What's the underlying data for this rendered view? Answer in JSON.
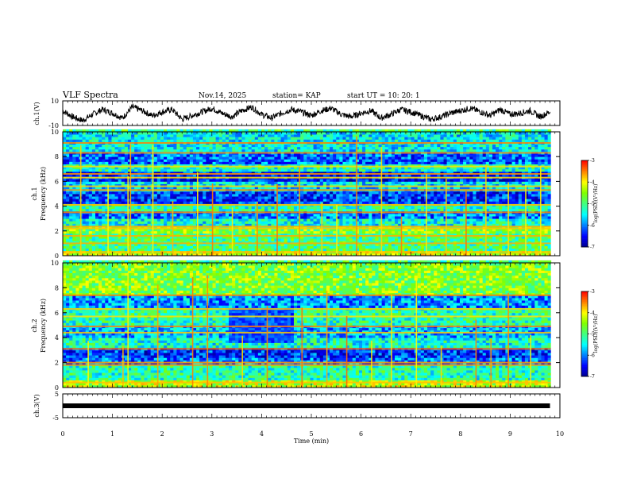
{
  "header": {
    "title": "VLF Spectra",
    "date": "Nov.14, 2025",
    "station": "station= KAP",
    "start_ut": "start  UT =   10: 20: 1"
  },
  "colors": {
    "waveform": "#000000",
    "ch3_bar": "#000000",
    "colormap": [
      "#00008f",
      "#0000ff",
      "#0080ff",
      "#00ffff",
      "#40ff80",
      "#80ff00",
      "#ffff00",
      "#ff8000",
      "#ff0000",
      "#ffffff"
    ]
  },
  "chart_data": [
    {
      "type": "line",
      "name": "ch1-waveform",
      "ylabel": "ch.1(V)",
      "ylim": [
        -10,
        10
      ],
      "yticks": [
        "10",
        "-10"
      ],
      "xlim": [
        0,
        10
      ],
      "x": [
        0,
        0.2,
        0.4,
        0.6,
        0.8,
        1.0,
        1.2,
        1.4,
        1.6,
        1.8,
        2.0,
        2.2,
        2.4,
        2.6,
        2.8,
        3.0,
        3.2,
        3.4,
        3.6,
        3.8,
        4.0,
        4.2,
        4.4,
        4.6,
        4.8,
        5.0,
        5.2,
        5.4,
        5.6,
        5.8,
        6.0,
        6.2,
        6.4,
        6.6,
        6.8,
        7.0,
        7.2,
        7.4,
        7.6,
        7.8,
        8.0,
        8.2,
        8.4,
        8.6,
        8.8,
        9.0,
        9.2,
        9.4,
        9.6,
        9.8
      ],
      "y": [
        2,
        -3,
        -6,
        -1,
        3,
        0,
        -4,
        5,
        2,
        -2,
        1,
        3,
        -5,
        -2,
        1,
        4,
        0,
        -3,
        2,
        5,
        -1,
        -4,
        0,
        3,
        1,
        -2,
        2,
        4,
        -1,
        -3,
        0,
        2,
        -4,
        -1,
        3,
        1,
        -2,
        -5,
        -3,
        0,
        2,
        4,
        1,
        -2,
        3,
        -1,
        0,
        2,
        -3,
        1
      ]
    },
    {
      "type": "heatmap",
      "name": "ch1-spectrogram",
      "ylabel_top": "ch.1",
      "ylabel": "Frequency (kHz)",
      "ylim": [
        0,
        10
      ],
      "yticks": [
        "0",
        "2",
        "4",
        "6",
        "8",
        "10"
      ],
      "xlim": [
        0,
        10
      ],
      "colorbar_label": "log(PSD)(V²/Hz)",
      "colorbar_ticks": [
        "-3",
        "-4",
        "-5",
        "-6",
        "-7"
      ],
      "colorbar_range": [
        -7,
        -3
      ],
      "freq_bands_khz": [
        {
          "from": 0,
          "to": 0.5,
          "level": -4.2
        },
        {
          "from": 0.5,
          "to": 1.8,
          "level": -5.0
        },
        {
          "from": 1.8,
          "to": 2.4,
          "level": -4.6
        },
        {
          "from": 2.4,
          "to": 3.0,
          "level": -5.4
        },
        {
          "from": 3.0,
          "to": 3.6,
          "level": -6.0
        },
        {
          "from": 3.6,
          "to": 4.2,
          "level": -5.2
        },
        {
          "from": 4.2,
          "to": 5.2,
          "level": -6.3
        },
        {
          "from": 5.2,
          "to": 6.0,
          "level": -5.6
        },
        {
          "from": 6.0,
          "to": 6.8,
          "level": -6.4
        },
        {
          "from": 6.8,
          "to": 7.4,
          "level": -5.3
        },
        {
          "from": 7.4,
          "to": 8.4,
          "level": -6.1
        },
        {
          "from": 8.4,
          "to": 10,
          "level": -5.5
        }
      ],
      "tone_lines_khz": [
        0.3,
        1.0,
        1.6,
        2.2,
        2.35,
        3.5,
        4.1,
        5.3,
        5.6,
        6.3,
        6.6,
        7.2,
        8.3,
        9.1
      ],
      "sferic_times_min": [
        0.35,
        0.9,
        1.3,
        1.35,
        1.8,
        2.2,
        2.7,
        3.0,
        3.4,
        3.9,
        4.3,
        4.75,
        5.2,
        5.5,
        5.9,
        6.4,
        6.8,
        7.3,
        7.7,
        8.1,
        8.5,
        8.95,
        9.3,
        9.6
      ]
    },
    {
      "type": "heatmap",
      "name": "ch2-spectrogram",
      "ylabel_top": "ch.2",
      "ylabel": "Frequency (kHz)",
      "ylim": [
        0,
        10
      ],
      "yticks": [
        "0",
        "2",
        "4",
        "6",
        "8",
        "10"
      ],
      "xlim": [
        0,
        10
      ],
      "colorbar_label": "log(PSD)(V²/Hz)",
      "colorbar_ticks": [
        "-3",
        "-4",
        "-5",
        "-6",
        "-7"
      ],
      "colorbar_range": [
        -7,
        -3
      ],
      "freq_bands_khz": [
        {
          "from": 0,
          "to": 0.6,
          "level": -4.3
        },
        {
          "from": 0.6,
          "to": 1.8,
          "level": -5.2
        },
        {
          "from": 1.8,
          "to": 2.5,
          "level": -6.1
        },
        {
          "from": 2.5,
          "to": 3.2,
          "level": -6.3
        },
        {
          "from": 3.2,
          "to": 4.0,
          "level": -5.3
        },
        {
          "from": 4.0,
          "to": 5.0,
          "level": -5.8
        },
        {
          "from": 5.0,
          "to": 6.5,
          "level": -5.2
        },
        {
          "from": 6.5,
          "to": 7.5,
          "level": -5.9
        },
        {
          "from": 7.5,
          "to": 10,
          "level": -4.6
        }
      ],
      "tone_lines_khz": [
        0.4,
        1.8,
        2.0,
        3.1,
        4.4,
        4.9,
        5.7,
        6.3,
        7.4
      ],
      "quiet_patch": {
        "t_from": 3.3,
        "t_to": 4.7,
        "f_from": 3.6,
        "f_to": 6.3
      },
      "sferic_times_min": [
        0.5,
        1.2,
        1.3,
        1.9,
        2.6,
        2.9,
        3.6,
        4.1,
        4.8,
        5.3,
        5.7,
        6.2,
        6.6,
        7.1,
        7.6,
        8.3,
        8.6,
        8.95,
        9.4
      ]
    },
    {
      "type": "line",
      "name": "ch3-voltage",
      "ylabel": "ch.3(V)",
      "ylim": [
        -5,
        5
      ],
      "yticks": [
        "5",
        "-5"
      ],
      "xlim": [
        0,
        10
      ],
      "x": [
        0,
        9.8
      ],
      "y": [
        0,
        0
      ]
    }
  ],
  "xaxis": {
    "label": "Time  (min)",
    "ticks": [
      "0",
      "1",
      "2",
      "3",
      "4",
      "5",
      "6",
      "7",
      "8",
      "9",
      "10"
    ]
  }
}
